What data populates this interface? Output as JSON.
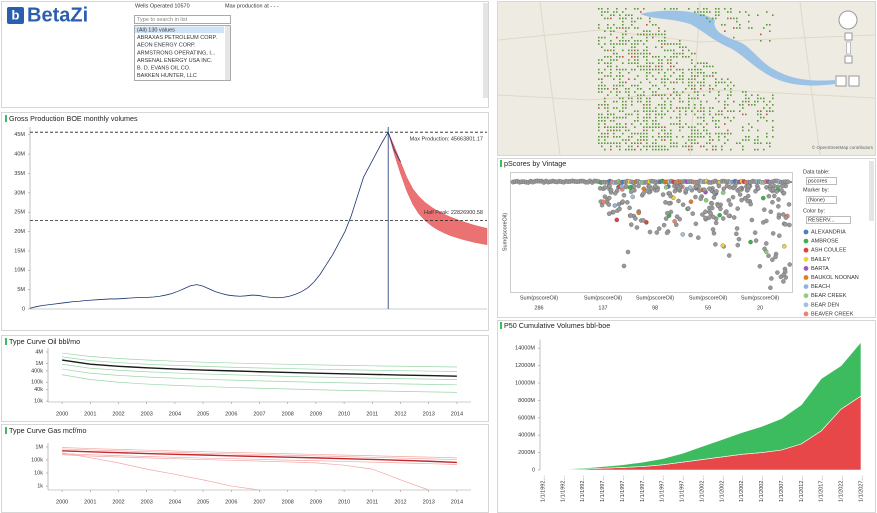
{
  "header": {
    "logo": "BetaZi",
    "wells_operated": "Wells Operated 10570",
    "max_production": "Max production at - - -"
  },
  "filter": {
    "placeholder": "Type to search in list",
    "items": [
      "(All) 130 values",
      "ABRAXAS PETROLEUM CORP.",
      "AEON ENERGY CORP.",
      "ARMSTRONG OPERATING, I...",
      "ARSENAL ENERGY USA INC.",
      "B. D. EVANS OIL CO.",
      "BAKKEN HUNTER, LLC"
    ]
  },
  "map": {
    "attribution": "© OpenStreetMap contributors"
  },
  "pscores": {
    "title": "pScores by Vintage",
    "y_label": "Sum(pscoreOil)",
    "columns": [
      {
        "label": "Sum(pscoreOil)",
        "count": 286
      },
      {
        "label": "Sum(pscoreOil)",
        "count": 137
      },
      {
        "label": "Sum(pscoreOil)",
        "count": 98
      },
      {
        "label": "Sum(pscoreOil)",
        "count": 59
      },
      {
        "label": "Sum(pscoreOil)",
        "count": 20
      }
    ],
    "legend": {
      "data_table_label": "Data table:",
      "data_table": "pscores",
      "marker_label": "Marker by:",
      "marker": "(None)",
      "color_label": "Color by:",
      "color": "RESERV...",
      "items": [
        {
          "name": "ALEXANDRIA",
          "color": "#4a7fc1"
        },
        {
          "name": "AMBROSE",
          "color": "#3bb34a"
        },
        {
          "name": "ASH COULEE",
          "color": "#e0403a"
        },
        {
          "name": "BAILEY",
          "color": "#f0d040"
        },
        {
          "name": "BARTA",
          "color": "#9b59c0"
        },
        {
          "name": "BAUKOL NOONAN",
          "color": "#e07b28"
        },
        {
          "name": "BEACH",
          "color": "#8ab4e0"
        },
        {
          "name": "BEAR CREEK",
          "color": "#8cd07a"
        },
        {
          "name": "BEAR DEN",
          "color": "#9ec0d8"
        },
        {
          "name": "BEAVER CREEK",
          "color": "#f08070"
        }
      ]
    }
  },
  "chart_data": [
    {
      "type": "line",
      "title": "Gross Production BOE monthly volumes",
      "ylim": [
        0,
        47000000
      ],
      "yticks": [
        0,
        {
          "value": 5000000,
          "label": "5M"
        },
        {
          "value": 10000000,
          "label": "10M"
        },
        {
          "value": 15000000,
          "label": "15M"
        },
        {
          "value": 20000000,
          "label": "20M"
        },
        {
          "value": 25000000,
          "label": "25M"
        },
        {
          "value": 30000000,
          "label": "30M"
        },
        {
          "value": 35000000,
          "label": "35M"
        },
        {
          "value": 40000000,
          "label": "40M"
        },
        {
          "value": 45000000,
          "label": "45M"
        }
      ],
      "series": [
        {
          "color": "#1a3570",
          "values": [
            200000,
            600000,
            900000,
            1100000,
            1300000,
            1500000,
            1700000,
            1900000,
            2000000,
            2200000,
            2300000,
            2400000,
            2500000,
            2600000,
            2600000,
            2700000,
            2800000,
            2900000,
            3000000,
            3000000,
            3100000,
            3300000,
            3600000,
            4000000,
            4600000,
            5300000,
            6000000,
            6300000,
            5900000,
            5200000,
            4500000,
            4000000,
            3600000,
            3400000,
            3300000,
            3400000,
            3600000,
            3500000,
            3200000,
            3000000,
            2900000,
            3000000,
            3300000,
            3800000,
            4500000,
            5500000,
            7000000,
            9000000,
            11500000,
            14000000,
            17000000,
            20000000,
            24000000,
            29000000,
            34000000,
            37000000,
            40000000,
            43000000,
            45663801.17,
            41000000,
            38000000,
            null,
            null,
            null,
            null,
            null,
            null,
            null,
            null,
            null,
            null,
            null,
            null,
            null,
            null
          ]
        }
      ],
      "band": {
        "color": "#e8595b",
        "high": [
          null,
          null,
          null,
          null,
          null,
          null,
          null,
          null,
          null,
          null,
          null,
          null,
          null,
          null,
          null,
          null,
          null,
          null,
          null,
          null,
          null,
          null,
          null,
          null,
          null,
          null,
          null,
          null,
          null,
          null,
          null,
          null,
          null,
          null,
          null,
          null,
          null,
          null,
          null,
          null,
          null,
          null,
          null,
          null,
          null,
          null,
          null,
          null,
          null,
          null,
          null,
          null,
          null,
          null,
          null,
          null,
          null,
          null,
          45663801.17,
          42000000,
          38000000,
          34000000,
          31000000,
          29000000,
          27500000,
          26300000,
          25300000,
          24500000,
          23800000,
          23200000,
          22600000,
          22100000,
          21600000,
          21200000,
          20800000
        ],
        "low": [
          null,
          null,
          null,
          null,
          null,
          null,
          null,
          null,
          null,
          null,
          null,
          null,
          null,
          null,
          null,
          null,
          null,
          null,
          null,
          null,
          null,
          null,
          null,
          null,
          null,
          null,
          null,
          null,
          null,
          null,
          null,
          null,
          null,
          null,
          null,
          null,
          null,
          null,
          null,
          null,
          null,
          null,
          null,
          null,
          null,
          null,
          null,
          null,
          null,
          null,
          null,
          null,
          null,
          null,
          null,
          null,
          null,
          null,
          45663801.17,
          40000000,
          35000000,
          30500000,
          27000000,
          24500000,
          22800000,
          21500000,
          20500000,
          19700000,
          19000000,
          18500000,
          18000000,
          17600000,
          17200000,
          16900000,
          16600000
        ]
      },
      "annotations": [
        {
          "label": "Max Production: 45663801.17",
          "value": 45663801.17
        },
        {
          "label": "Half Peak: 22826900.58",
          "value": 22826900.58
        }
      ]
    },
    {
      "type": "line",
      "title": "Type Curve Oil bbl/mo",
      "log_scale": true,
      "x": [
        2000,
        2001,
        2002,
        2003,
        2004,
        2005,
        2006,
        2007,
        2008,
        2009,
        2010,
        2011,
        2012,
        2013,
        2014
      ],
      "xlim": [
        1999.5,
        2014.5
      ],
      "xticks": [
        2000,
        2001,
        2002,
        2003,
        2004,
        2005,
        2006,
        2007,
        2008,
        2009,
        2010,
        2011,
        2012,
        2013,
        2014
      ],
      "ylim": [
        9000,
        6500000
      ],
      "yticks": [
        {
          "value": 4000000,
          "label": "4M"
        },
        {
          "value": 1000000,
          "label": "1M"
        },
        {
          "value": 400000,
          "label": "400k"
        },
        {
          "value": 100000,
          "label": "100k"
        },
        {
          "value": 40000,
          "label": "40k"
        },
        {
          "value": 10000,
          "label": "10k"
        }
      ],
      "series": [
        {
          "color": "#9ad6a8",
          "values": [
            3500000,
            2300000,
            1800000,
            1500000,
            1300000,
            1150000,
            1050000,
            960000,
            890000,
            830000,
            780000,
            740000,
            700000,
            670000,
            640000
          ]
        },
        {
          "color": "#9ad6a8",
          "values": [
            2200000,
            1400000,
            1100000,
            900000,
            780000,
            690000,
            620000,
            570000,
            530000,
            490000,
            460000,
            430000,
            410000,
            390000,
            370000
          ]
        },
        {
          "color": "#9ad6a8",
          "values": [
            900000,
            550000,
            430000,
            360000,
            310000,
            275000,
            250000,
            225000,
            205000,
            190000,
            178000,
            166000,
            155000,
            146000,
            138000
          ]
        },
        {
          "color": "#9ad6a8",
          "values": [
            500000,
            300000,
            230000,
            190000,
            165000,
            145000,
            130000,
            118000,
            108000,
            100000,
            93000,
            87000,
            82000,
            77000,
            73000
          ]
        },
        {
          "color": "#9ad6a8",
          "values": [
            250000,
            140000,
            100000,
            80000,
            68000,
            60000,
            53000,
            48000,
            44000,
            40000,
            37000,
            35000,
            33000,
            31000,
            29000
          ]
        },
        {
          "color": "#1a1a1a",
          "values": [
            1500000,
            900000,
            700000,
            580000,
            500000,
            440000,
            400000,
            360000,
            330000,
            300000,
            280000,
            260000,
            240000,
            225000,
            210000
          ]
        }
      ]
    },
    {
      "type": "line",
      "title": "Type Curve Gas mcf/mo",
      "log_scale": true,
      "x": [
        2000,
        2001,
        2002,
        2003,
        2004,
        2005,
        2006,
        2007,
        2008,
        2009,
        2010,
        2011,
        2012,
        2013,
        2014
      ],
      "xlim": [
        1999.5,
        2014.5
      ],
      "xticks": [
        2000,
        2001,
        2002,
        2003,
        2004,
        2005,
        2006,
        2007,
        2008,
        2009,
        2010,
        2011,
        2012,
        2013,
        2014
      ],
      "ylim": [
        500,
        2000000
      ],
      "yticks": [
        {
          "value": 1000000,
          "label": "1M"
        },
        {
          "value": 100000,
          "label": "100k"
        },
        {
          "value": 10000,
          "label": "10k"
        },
        {
          "value": 1000,
          "label": "1k"
        }
      ],
      "series": [
        {
          "color": "#f4a6a6",
          "values": [
            900000,
            750000,
            650000,
            560000,
            490000,
            430000,
            380000,
            340000,
            300000,
            265000,
            235000,
            210000,
            185000,
            165000,
            145000
          ]
        },
        {
          "color": "#f4a6a6",
          "values": [
            700000,
            590000,
            500000,
            430000,
            380000,
            330000,
            290000,
            260000,
            230000,
            205000,
            180000,
            160000,
            140000,
            122000,
            105000
          ]
        },
        {
          "color": "#f4a6a6",
          "values": [
            300000,
            250000,
            215000,
            185000,
            160000,
            140000,
            125000,
            110000,
            98000,
            87000,
            77000,
            68000,
            60000,
            52000,
            45000
          ]
        },
        {
          "color": "#f4a6a6",
          "values": [
            350000,
            150000,
            60000,
            20000,
            8000,
            3000,
            1000,
            500,
            null,
            null,
            null,
            null,
            null,
            null,
            null
          ]
        },
        {
          "color": "#f4a6a6",
          "values": [
            250000,
            200000,
            170000,
            145000,
            125000,
            108000,
            94000,
            82000,
            71000,
            60000,
            40000,
            20000,
            3000,
            500,
            null
          ]
        },
        {
          "color": "#c0282a",
          "values": [
            500000,
            420000,
            360000,
            310000,
            270000,
            240000,
            210000,
            185000,
            165000,
            145000,
            125000,
            110000,
            95000,
            80000,
            65000
          ]
        }
      ]
    },
    {
      "type": "area",
      "title": "P50 Cumulative Volumes bbl-boe",
      "stacked": true,
      "categories": [
        "1/1/1992...",
        "1/1/1992...",
        "1/1/1992...",
        "1/1/1997...",
        "1/1/1997...",
        "1/1/1997...",
        "1/1/1997...",
        "1/1/1997...",
        "1/1/2002...",
        "1/1/2002...",
        "1/1/2002...",
        "1/1/2002...",
        "1/1/2007...",
        "1/1/2012...",
        "1/1/2017...",
        "1/1/2022...",
        "1/1/2027..."
      ],
      "ylim": [
        0,
        15000000000
      ],
      "yticks": [
        0,
        {
          "value": 2000000000,
          "label": "2000M"
        },
        {
          "value": 4000000000,
          "label": "4000M"
        },
        {
          "value": 6000000000,
          "label": "6000M"
        },
        {
          "value": 8000000000,
          "label": "8000M"
        },
        {
          "value": 10000000000,
          "label": "10000M"
        },
        {
          "value": 12000000000,
          "label": "12000M"
        },
        {
          "value": 14000000000,
          "label": "14000M"
        }
      ],
      "series": [
        {
          "color": "#e8474a",
          "values": [
            0,
            50000000,
            100000000,
            200000000,
            300000000,
            400000000,
            600000000,
            900000000,
            1200000000,
            1500000000,
            1800000000,
            2000000000,
            2300000000,
            3000000000,
            4500000000,
            7000000000,
            8500000000
          ]
        },
        {
          "color": "#3dbb5f",
          "values": [
            0,
            50000000,
            100000000,
            200000000,
            300000000,
            500000000,
            700000000,
            1000000000,
            1500000000,
            2000000000,
            2500000000,
            3000000000,
            3600000000,
            4500000000,
            6000000000,
            5000000000,
            6200000000
          ]
        }
      ]
    }
  ]
}
